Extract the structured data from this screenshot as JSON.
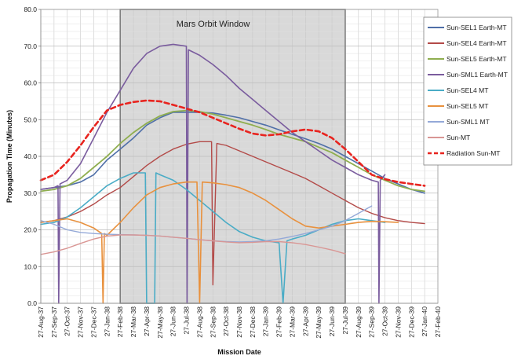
{
  "chart_data": {
    "type": "line",
    "title": "",
    "xlabel": "Mission Date",
    "ylabel": "Propagation Time (Minutes)",
    "ylim": [
      0,
      80
    ],
    "yticks": [
      "0.0",
      "10.0",
      "20.0",
      "30.0",
      "40.0",
      "50.0",
      "60.0",
      "70.0",
      "80.0"
    ],
    "x_categories": [
      "27-Aug-37",
      "27-Sep-37",
      "27-Oct-37",
      "27-Nov-37",
      "27-Dec-37",
      "27-Jan-38",
      "27-Feb-38",
      "27-Mar-38",
      "27-Apr-38",
      "27-May-38",
      "27-Jun-38",
      "27-Jul-38",
      "27-Aug-38",
      "27-Sep-38",
      "27-Oct-38",
      "27-Nov-38",
      "27-Dec-38",
      "27-Jan-39",
      "27-Feb-39",
      "27-Mar-39",
      "27-Apr-39",
      "27-May-39",
      "27-Jun-39",
      "27-Jul-39",
      "27-Aug-39",
      "27-Sep-39",
      "27-Oct-39",
      "27-Nov-39",
      "27-Dec-39",
      "27-Jan-40",
      "27-Feb-40"
    ],
    "grid": true,
    "legend_position": "right",
    "annotation": {
      "label": "Mars Orbit Window",
      "start": "27-Feb-38",
      "end": "27-Jul-39",
      "fill": "#d9d9d9",
      "stroke": "#7f7f7f"
    },
    "series": [
      {
        "name": "Sun-SEL1 Earth-MT",
        "color": "#4f6fa8",
        "width": 1.6,
        "dash": "",
        "points": [
          [
            0,
            31
          ],
          [
            1,
            31.5
          ],
          [
            2,
            32
          ],
          [
            3,
            33
          ],
          [
            4,
            35
          ],
          [
            5,
            39
          ],
          [
            6,
            42
          ],
          [
            7,
            45
          ],
          [
            8,
            48.5
          ],
          [
            9,
            50.5
          ],
          [
            10,
            52
          ],
          [
            11,
            52
          ],
          [
            12,
            52
          ],
          [
            13,
            51.8
          ],
          [
            14,
            51.2
          ],
          [
            15,
            50.5
          ],
          [
            16,
            49.5
          ],
          [
            17,
            48.5
          ],
          [
            18,
            47.2
          ],
          [
            19,
            46
          ],
          [
            20,
            44.8
          ],
          [
            21,
            43.5
          ],
          [
            22,
            42
          ],
          [
            23,
            40
          ],
          [
            24,
            38
          ],
          [
            25,
            36
          ],
          [
            26,
            34
          ],
          [
            27,
            32.5
          ],
          [
            28,
            31
          ],
          [
            29,
            30
          ]
        ]
      },
      {
        "name": "Sun-SEL4 Earth-MT",
        "color": "#b34a48",
        "width": 1.4,
        "dash": "",
        "points": [
          [
            0,
            22
          ],
          [
            1,
            22.5
          ],
          [
            2,
            23.5
          ],
          [
            3,
            25
          ],
          [
            4,
            27
          ],
          [
            5,
            29.5
          ],
          [
            6,
            31.5
          ],
          [
            7,
            34.5
          ],
          [
            8,
            37.5
          ],
          [
            9,
            40
          ],
          [
            10,
            42
          ],
          [
            11,
            43.3
          ],
          [
            12,
            44
          ],
          [
            12.9,
            44
          ],
          [
            13,
            5
          ],
          [
            13.3,
            43.5
          ],
          [
            14,
            43
          ],
          [
            15,
            41.5
          ],
          [
            16,
            40
          ],
          [
            17,
            38.5
          ],
          [
            18,
            37
          ],
          [
            19,
            35.5
          ],
          [
            20,
            34
          ],
          [
            21,
            32
          ],
          [
            22,
            30
          ],
          [
            23,
            28
          ],
          [
            24,
            26
          ],
          [
            25,
            24.5
          ],
          [
            26,
            23.3
          ],
          [
            27,
            22.5
          ],
          [
            28,
            22
          ],
          [
            29,
            21.7
          ]
        ]
      },
      {
        "name": "Sun-SEL5 Earth-MT",
        "color": "#8fae4f",
        "width": 1.8,
        "dash": "",
        "points": [
          [
            0,
            30.5
          ],
          [
            1,
            31
          ],
          [
            2,
            32
          ],
          [
            3,
            34
          ],
          [
            4,
            37
          ],
          [
            5,
            40
          ],
          [
            6,
            43.5
          ],
          [
            7,
            46.5
          ],
          [
            8,
            49
          ],
          [
            9,
            51
          ],
          [
            10,
            52.2
          ],
          [
            11,
            52.5
          ],
          [
            12,
            52.2
          ],
          [
            13,
            51.5
          ],
          [
            14,
            50.5
          ],
          [
            15,
            49.5
          ],
          [
            16,
            48.5
          ],
          [
            17,
            47.3
          ],
          [
            18,
            46
          ],
          [
            19,
            45
          ],
          [
            20,
            44
          ],
          [
            21,
            42.5
          ],
          [
            22,
            41
          ],
          [
            23,
            39
          ],
          [
            24,
            37
          ],
          [
            25,
            35
          ],
          [
            26,
            33.5
          ],
          [
            27,
            32
          ],
          [
            28,
            31
          ],
          [
            29,
            30.5
          ]
        ]
      },
      {
        "name": "Sun-SML1 Earth-MT",
        "color": "#7a5c9e",
        "width": 1.6,
        "dash": "",
        "points": [
          [
            0,
            31
          ],
          [
            1,
            31.5
          ],
          [
            1.3,
            32
          ],
          [
            1.35,
            0
          ],
          [
            1.45,
            32.5
          ],
          [
            2,
            33.5
          ],
          [
            3,
            38
          ],
          [
            4,
            45
          ],
          [
            5,
            52
          ],
          [
            6,
            58
          ],
          [
            7,
            64
          ],
          [
            8,
            68
          ],
          [
            9,
            70
          ],
          [
            10,
            70.5
          ],
          [
            11,
            70
          ],
          [
            11.05,
            0
          ],
          [
            11.15,
            69
          ],
          [
            12,
            67.5
          ],
          [
            13,
            65
          ],
          [
            14,
            62
          ],
          [
            15,
            58.5
          ],
          [
            16,
            55.5
          ],
          [
            17,
            52.5
          ],
          [
            18,
            49.5
          ],
          [
            19,
            46.5
          ],
          [
            20,
            44
          ],
          [
            21,
            41.5
          ],
          [
            22,
            39
          ],
          [
            23,
            37
          ],
          [
            24,
            35
          ],
          [
            25,
            33.5
          ],
          [
            25.5,
            33
          ],
          [
            25.55,
            0
          ],
          [
            25.65,
            33.5
          ],
          [
            26,
            35
          ]
        ]
      },
      {
        "name": "Sun-SEL4 MT",
        "color": "#4aacc6",
        "width": 1.6,
        "dash": "",
        "points": [
          [
            0,
            21.5
          ],
          [
            1,
            22
          ],
          [
            2,
            23.5
          ],
          [
            3,
            26
          ],
          [
            4,
            29
          ],
          [
            5,
            32
          ],
          [
            6,
            34
          ],
          [
            7,
            35.5
          ],
          [
            7.9,
            35.5
          ],
          [
            8,
            0
          ],
          [
            8.6,
            0
          ],
          [
            8.7,
            35.5
          ],
          [
            9,
            35
          ],
          [
            10,
            33.5
          ],
          [
            11,
            31
          ],
          [
            12,
            28
          ],
          [
            13,
            25
          ],
          [
            14,
            22
          ],
          [
            15,
            19.5
          ],
          [
            16,
            18
          ],
          [
            17,
            17
          ],
          [
            18,
            16.5
          ],
          [
            18.3,
            0
          ],
          [
            18.6,
            17
          ],
          [
            19,
            17.5
          ],
          [
            20,
            18.5
          ],
          [
            21,
            20
          ],
          [
            22,
            21.5
          ],
          [
            23,
            22.5
          ],
          [
            24,
            23
          ],
          [
            25,
            22.5
          ],
          [
            26,
            22
          ]
        ]
      },
      {
        "name": "Sun-SEL5 MT",
        "color": "#e8913e",
        "width": 1.6,
        "dash": "",
        "points": [
          [
            0,
            22
          ],
          [
            1,
            22.5
          ],
          [
            2,
            23
          ],
          [
            3,
            22
          ],
          [
            4,
            20.5
          ],
          [
            4.6,
            19
          ],
          [
            4.7,
            0
          ],
          [
            4.8,
            19
          ],
          [
            5,
            18.5
          ],
          [
            6,
            22
          ],
          [
            7,
            26
          ],
          [
            8,
            29.5
          ],
          [
            9,
            31.5
          ],
          [
            10,
            32.5
          ],
          [
            11,
            33
          ],
          [
            11.8,
            33
          ],
          [
            12,
            0
          ],
          [
            12.2,
            33
          ],
          [
            13,
            32.8
          ],
          [
            14,
            32.3
          ],
          [
            15,
            31.5
          ],
          [
            16,
            30
          ],
          [
            17,
            28
          ],
          [
            18,
            25.5
          ],
          [
            19,
            23
          ],
          [
            20,
            21
          ],
          [
            21,
            20.5
          ],
          [
            22,
            21
          ],
          [
            23,
            21.5
          ],
          [
            24,
            22
          ],
          [
            25,
            22.3
          ],
          [
            26,
            22.2
          ],
          [
            27,
            22
          ]
        ]
      },
      {
        "name": "Sun-SML1 MT",
        "color": "#94a9d8",
        "width": 1.4,
        "dash": "",
        "points": [
          [
            0,
            22.5
          ],
          [
            1,
            21.5
          ],
          [
            2,
            20
          ],
          [
            3,
            19.3
          ],
          [
            4,
            19
          ],
          [
            5,
            18.8
          ],
          [
            6,
            18.7
          ],
          [
            7,
            18.6
          ],
          [
            8,
            18.5
          ],
          [
            9,
            18.3
          ],
          [
            10,
            18
          ],
          [
            11,
            17.7
          ],
          [
            12,
            17.3
          ],
          [
            13,
            17
          ],
          [
            14,
            16.8
          ],
          [
            15,
            16.7
          ],
          [
            16,
            16.8
          ],
          [
            17,
            17
          ],
          [
            18,
            17.5
          ],
          [
            19,
            18.2
          ],
          [
            20,
            19
          ],
          [
            21,
            20
          ],
          [
            22,
            21
          ],
          [
            23,
            22.5
          ],
          [
            24,
            24.5
          ],
          [
            25,
            26.5
          ]
        ]
      },
      {
        "name": "Sun-MT",
        "color": "#d99694",
        "width": 1.4,
        "dash": "",
        "points": [
          [
            0,
            13.3
          ],
          [
            1,
            14
          ],
          [
            2,
            15
          ],
          [
            3,
            16.3
          ],
          [
            4,
            17.5
          ],
          [
            5,
            18.3
          ],
          [
            6,
            18.6
          ],
          [
            7,
            18.6
          ],
          [
            8,
            18.5
          ],
          [
            9,
            18.3
          ],
          [
            10,
            18
          ],
          [
            11,
            17.7
          ],
          [
            12,
            17.3
          ],
          [
            13,
            17
          ],
          [
            14,
            16.7
          ],
          [
            15,
            16.5
          ],
          [
            16,
            16.6
          ],
          [
            17,
            16.8
          ],
          [
            18,
            16.8
          ],
          [
            19,
            16.5
          ],
          [
            20,
            16
          ],
          [
            21,
            15.3
          ],
          [
            22,
            14.5
          ],
          [
            23,
            13.5
          ]
        ]
      },
      {
        "name": "Radiation Sun-MT",
        "color": "#e8241f",
        "width": 2.6,
        "dash": "6 4",
        "points": [
          [
            0,
            33.5
          ],
          [
            1,
            35
          ],
          [
            2,
            38.5
          ],
          [
            3,
            43
          ],
          [
            4,
            48
          ],
          [
            5,
            52.5
          ],
          [
            6,
            54
          ],
          [
            7,
            54.8
          ],
          [
            8,
            55.2
          ],
          [
            9,
            55
          ],
          [
            10,
            54
          ],
          [
            11,
            53
          ],
          [
            12,
            52
          ],
          [
            13,
            50.5
          ],
          [
            14,
            49
          ],
          [
            15,
            47.5
          ],
          [
            16,
            46.2
          ],
          [
            17,
            45.7
          ],
          [
            18,
            46
          ],
          [
            19,
            46.8
          ],
          [
            20,
            47.3
          ],
          [
            21,
            46.8
          ],
          [
            22,
            45
          ],
          [
            23,
            42
          ],
          [
            24,
            38.5
          ],
          [
            25,
            35
          ],
          [
            26,
            33.8
          ],
          [
            27,
            33
          ],
          [
            28,
            32.5
          ],
          [
            29,
            32
          ]
        ]
      }
    ]
  }
}
